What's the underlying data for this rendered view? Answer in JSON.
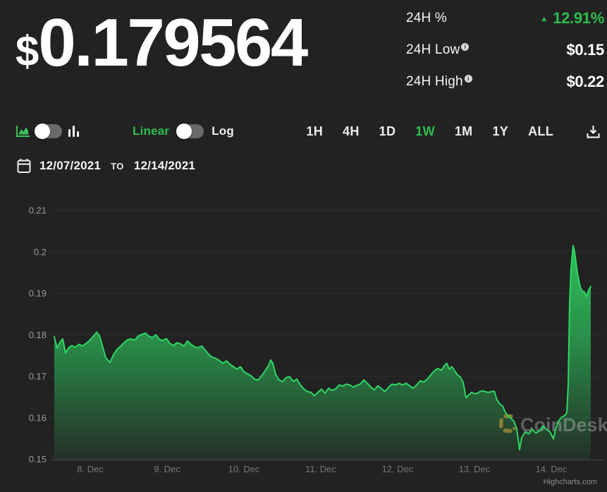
{
  "header": {
    "currency_symbol": "$",
    "price_value": "0.179564",
    "stats": [
      {
        "label": "24H %",
        "value": "12.91%",
        "direction": "up"
      },
      {
        "label": "24H Low",
        "value": "$0.15",
        "info": true
      },
      {
        "label": "24H High",
        "value": "$0.22",
        "info": true
      }
    ]
  },
  "controls": {
    "chart_type_selected": "area",
    "scale": {
      "linear_label": "Linear",
      "log_label": "Log",
      "selected": "Linear"
    },
    "ranges": [
      {
        "label": "1H",
        "active": false
      },
      {
        "label": "4H",
        "active": false
      },
      {
        "label": "1D",
        "active": false
      },
      {
        "label": "1W",
        "active": true
      },
      {
        "label": "1M",
        "active": false
      },
      {
        "label": "1Y",
        "active": false
      },
      {
        "label": "ALL",
        "active": false
      }
    ]
  },
  "date_range": {
    "from": "12/07/2021",
    "separator": "TO",
    "to": "12/14/2021"
  },
  "watermark": {
    "text": "CoinDesk"
  },
  "credit": "Highcharts.com",
  "colors": {
    "background": "#222222",
    "accent_green": "#2DBE4E",
    "line_green": "#2ED764",
    "fill_green": "#2FD863",
    "grid": "#2F2F2F",
    "axis_line": "#474747",
    "y_label": "#9C9C9C",
    "x_label": "#767676",
    "watermark_gold": "#A08B33",
    "watermark_text": "#C4C4C4",
    "credit_text": "#8E8E8E"
  },
  "chart_data": {
    "type": "area",
    "title": "",
    "xlabel": "",
    "ylabel": "",
    "x_unit": "days since 2021-12-07 00:00",
    "xlim": [
      0.486,
      7.679
    ],
    "ylim": [
      0.15,
      0.21
    ],
    "grid": true,
    "legend": false,
    "yticks": [
      0.15,
      0.16,
      0.17,
      0.18,
      0.19,
      0.2,
      0.21
    ],
    "ytick_labels": [
      "0.15",
      "0.16",
      "0.17",
      "0.18",
      "0.19",
      "0.2",
      "0.21"
    ],
    "xticks": [
      {
        "label": "8. Dec",
        "day": 1
      },
      {
        "label": "9. Dec",
        "day": 2
      },
      {
        "label": "10. Dec",
        "day": 3
      },
      {
        "label": "11. Dec",
        "day": 4
      },
      {
        "label": "12. Dec",
        "day": 5
      },
      {
        "label": "13. Dec",
        "day": 6
      },
      {
        "label": "14. Dec",
        "day": 7
      }
    ],
    "series": [
      {
        "name": "price",
        "points": [
          [
            0.532,
            0.1795
          ],
          [
            0.569,
            0.1768
          ],
          [
            0.606,
            0.1782
          ],
          [
            0.642,
            0.179
          ],
          [
            0.679,
            0.1756
          ],
          [
            0.716,
            0.1768
          ],
          [
            0.761,
            0.1774
          ],
          [
            0.807,
            0.177
          ],
          [
            0.853,
            0.1777
          ],
          [
            0.899,
            0.1773
          ],
          [
            0.945,
            0.1779
          ],
          [
            0.991,
            0.1786
          ],
          [
            1.037,
            0.1796
          ],
          [
            1.083,
            0.1806
          ],
          [
            1.119,
            0.1798
          ],
          [
            1.156,
            0.1775
          ],
          [
            1.202,
            0.1745
          ],
          [
            1.257,
            0.1733
          ],
          [
            1.303,
            0.1752
          ],
          [
            1.349,
            0.1765
          ],
          [
            1.394,
            0.1772
          ],
          [
            1.44,
            0.1781
          ],
          [
            1.486,
            0.1788
          ],
          [
            1.532,
            0.179
          ],
          [
            1.578,
            0.1787
          ],
          [
            1.624,
            0.1797
          ],
          [
            1.67,
            0.1801
          ],
          [
            1.716,
            0.1804
          ],
          [
            1.761,
            0.1797
          ],
          [
            1.807,
            0.1793
          ],
          [
            1.853,
            0.18
          ],
          [
            1.899,
            0.1789
          ],
          [
            1.945,
            0.1786
          ],
          [
            1.991,
            0.1791
          ],
          [
            2.037,
            0.1779
          ],
          [
            2.083,
            0.1774
          ],
          [
            2.128,
            0.1781
          ],
          [
            2.174,
            0.1778
          ],
          [
            2.22,
            0.1773
          ],
          [
            2.266,
            0.1785
          ],
          [
            2.312,
            0.1777
          ],
          [
            2.358,
            0.1771
          ],
          [
            2.404,
            0.1769
          ],
          [
            2.45,
            0.1773
          ],
          [
            2.495,
            0.1763
          ],
          [
            2.541,
            0.1753
          ],
          [
            2.587,
            0.1746
          ],
          [
            2.633,
            0.1743
          ],
          [
            2.679,
            0.1738
          ],
          [
            2.725,
            0.1731
          ],
          [
            2.771,
            0.1737
          ],
          [
            2.817,
            0.1729
          ],
          [
            2.862,
            0.1723
          ],
          [
            2.908,
            0.1717
          ],
          [
            2.954,
            0.1723
          ],
          [
            3.0,
            0.1711
          ],
          [
            3.046,
            0.1706
          ],
          [
            3.092,
            0.1701
          ],
          [
            3.138,
            0.1693
          ],
          [
            3.183,
            0.1691
          ],
          [
            3.229,
            0.1701
          ],
          [
            3.275,
            0.1713
          ],
          [
            3.321,
            0.1726
          ],
          [
            3.349,
            0.1739
          ],
          [
            3.376,
            0.1731
          ],
          [
            3.413,
            0.1704
          ],
          [
            3.459,
            0.1691
          ],
          [
            3.505,
            0.1687
          ],
          [
            3.55,
            0.1697
          ],
          [
            3.596,
            0.1699
          ],
          [
            3.642,
            0.1687
          ],
          [
            3.688,
            0.1693
          ],
          [
            3.734,
            0.1679
          ],
          [
            3.78,
            0.1669
          ],
          [
            3.826,
            0.1663
          ],
          [
            3.872,
            0.1661
          ],
          [
            3.917,
            0.1653
          ],
          [
            3.963,
            0.1661
          ],
          [
            4.009,
            0.1669
          ],
          [
            4.055,
            0.1659
          ],
          [
            4.101,
            0.1671
          ],
          [
            4.147,
            0.1666
          ],
          [
            4.193,
            0.1669
          ],
          [
            4.239,
            0.1679
          ],
          [
            4.284,
            0.1676
          ],
          [
            4.33,
            0.1681
          ],
          [
            4.376,
            0.1679
          ],
          [
            4.422,
            0.1674
          ],
          [
            4.468,
            0.1678
          ],
          [
            4.514,
            0.1681
          ],
          [
            4.56,
            0.1691
          ],
          [
            4.606,
            0.1683
          ],
          [
            4.651,
            0.1674
          ],
          [
            4.697,
            0.1667
          ],
          [
            4.743,
            0.1677
          ],
          [
            4.789,
            0.167
          ],
          [
            4.835,
            0.1663
          ],
          [
            4.881,
            0.1673
          ],
          [
            4.927,
            0.1681
          ],
          [
            4.972,
            0.1679
          ],
          [
            5.018,
            0.1683
          ],
          [
            5.064,
            0.1679
          ],
          [
            5.11,
            0.1683
          ],
          [
            5.156,
            0.1677
          ],
          [
            5.202,
            0.1671
          ],
          [
            5.248,
            0.1679
          ],
          [
            5.294,
            0.1689
          ],
          [
            5.339,
            0.1686
          ],
          [
            5.385,
            0.1693
          ],
          [
            5.431,
            0.1703
          ],
          [
            5.477,
            0.1713
          ],
          [
            5.523,
            0.1719
          ],
          [
            5.569,
            0.1714
          ],
          [
            5.615,
            0.1727
          ],
          [
            5.642,
            0.1731
          ],
          [
            5.67,
            0.1717
          ],
          [
            5.706,
            0.1723
          ],
          [
            5.743,
            0.1713
          ],
          [
            5.78,
            0.1703
          ],
          [
            5.817,
            0.1698
          ],
          [
            5.853,
            0.1685
          ],
          [
            5.89,
            0.1648
          ],
          [
            5.927,
            0.1655
          ],
          [
            5.963,
            0.1661
          ],
          [
            6.0,
            0.1658
          ],
          [
            6.037,
            0.1659
          ],
          [
            6.073,
            0.1663
          ],
          [
            6.11,
            0.1665
          ],
          [
            6.147,
            0.1662
          ],
          [
            6.183,
            0.1661
          ],
          [
            6.22,
            0.1663
          ],
          [
            6.257,
            0.1664
          ],
          [
            6.294,
            0.1643
          ],
          [
            6.33,
            0.1633
          ],
          [
            6.367,
            0.1628
          ],
          [
            6.404,
            0.1612
          ],
          [
            6.44,
            0.1604
          ],
          [
            6.477,
            0.1598
          ],
          [
            6.514,
            0.1591
          ],
          [
            6.55,
            0.1574
          ],
          [
            6.587,
            0.1523
          ],
          [
            6.615,
            0.1552
          ],
          [
            6.661,
            0.1566
          ],
          [
            6.706,
            0.1561
          ],
          [
            6.752,
            0.1572
          ],
          [
            6.798,
            0.1563
          ],
          [
            6.844,
            0.1568
          ],
          [
            6.89,
            0.158
          ],
          [
            6.936,
            0.1572
          ],
          [
            6.982,
            0.1566
          ],
          [
            7.028,
            0.1549
          ],
          [
            7.055,
            0.1572
          ],
          [
            7.092,
            0.1591
          ],
          [
            7.138,
            0.1602
          ],
          [
            7.174,
            0.1605
          ],
          [
            7.202,
            0.1612
          ],
          [
            7.22,
            0.168
          ],
          [
            7.239,
            0.188
          ],
          [
            7.257,
            0.196
          ],
          [
            7.284,
            0.2015
          ],
          [
            7.303,
            0.2
          ],
          [
            7.321,
            0.1975
          ],
          [
            7.339,
            0.195
          ],
          [
            7.358,
            0.1932
          ],
          [
            7.376,
            0.1915
          ],
          [
            7.404,
            0.1905
          ],
          [
            7.431,
            0.1903
          ],
          [
            7.459,
            0.1892
          ],
          [
            7.486,
            0.1908
          ],
          [
            7.514,
            0.1916
          ]
        ]
      }
    ]
  }
}
